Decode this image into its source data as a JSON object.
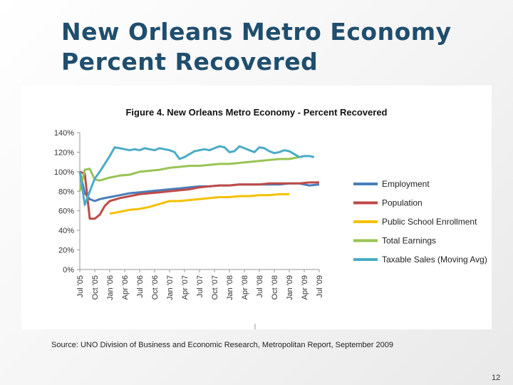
{
  "slide": {
    "title_line1": "New Orleans Metro Economy",
    "title_line2": "Percent Recovered",
    "source": "Source: UNO Division of Business and Economic Research, Metropolitan Report, September 2009",
    "page_number": "12"
  },
  "chart_data": {
    "type": "line",
    "title": "Figure 4. New Orleans Metro Economy - Percent Recovered",
    "xlabel": "",
    "ylabel": "",
    "ylim": [
      0,
      140
    ],
    "y_ticks": [
      "0%",
      "20%",
      "40%",
      "60%",
      "80%",
      "100%",
      "120%",
      "140%"
    ],
    "x_ticks": [
      "Jul '05",
      "Oct '05",
      "Jan '06",
      "Apr '06",
      "Jul '06",
      "Oct '06",
      "Jan '07",
      "Apr '07",
      "Jul '07",
      "Oct '07",
      "Jan '08",
      "Apr '08",
      "Jul '08",
      "Oct '08",
      "Jan '09",
      "Apr '09",
      "Jul '09"
    ],
    "legend_position": "right",
    "grid": false,
    "series": [
      {
        "name": "Employment",
        "color": "#4a7ebb",
        "x": [
          0,
          1,
          2,
          3,
          4,
          5,
          6,
          8,
          10,
          12,
          14,
          16,
          18,
          20,
          22,
          24,
          26,
          28,
          30,
          32,
          34,
          36,
          38,
          40,
          42,
          44,
          46,
          48
        ],
        "values": [
          100,
          78,
          72,
          70,
          72,
          73,
          74,
          76,
          78,
          79,
          80,
          81,
          82,
          83,
          84,
          85,
          85,
          86,
          86,
          87,
          87,
          87,
          87,
          87,
          88,
          88,
          86,
          87
        ]
      },
      {
        "name": "Population",
        "color": "#be4b48",
        "x": [
          0,
          1,
          2,
          3,
          4,
          5,
          6,
          8,
          10,
          12,
          14,
          16,
          18,
          20,
          22,
          24,
          26,
          28,
          30,
          32,
          34,
          36,
          38,
          40,
          42,
          44,
          46,
          48
        ],
        "values": [
          100,
          98,
          52,
          52,
          56,
          65,
          70,
          73,
          75,
          77,
          78,
          79,
          80,
          81,
          82,
          84,
          85,
          86,
          86,
          87,
          87,
          87,
          88,
          88,
          88,
          88,
          89,
          89
        ]
      },
      {
        "name": "Public School Enrollment",
        "color": "#f5c000",
        "x": [
          6,
          8,
          10,
          12,
          14,
          16,
          18,
          20,
          22,
          24,
          26,
          28,
          30,
          32,
          34,
          36,
          38,
          40,
          42
        ],
        "values": [
          57,
          59,
          61,
          62,
          64,
          67,
          70,
          70,
          71,
          72,
          73,
          74,
          74,
          75,
          75,
          76,
          76,
          77,
          77
        ]
      },
      {
        "name": "Total Earnings",
        "color": "#98c454",
        "x": [
          0,
          1,
          2,
          3,
          4,
          6,
          8,
          10,
          12,
          14,
          16,
          18,
          20,
          22,
          24,
          26,
          28,
          30,
          32,
          34,
          36,
          38,
          40,
          42,
          44
        ],
        "values": [
          80,
          102,
          103,
          92,
          91,
          94,
          96,
          97,
          100,
          101,
          102,
          104,
          105,
          106,
          106,
          107,
          108,
          108,
          109,
          110,
          111,
          112,
          113,
          113,
          115
        ]
      },
      {
        "name": "Taxable Sales (Moving Avg)",
        "color": "#4bacc6",
        "x": [
          0,
          1,
          2,
          3,
          4,
          5,
          6,
          7,
          8,
          9,
          10,
          11,
          12,
          13,
          14,
          15,
          16,
          17,
          18,
          19,
          20,
          21,
          22,
          23,
          24,
          25,
          26,
          27,
          28,
          29,
          30,
          31,
          32,
          33,
          34,
          35,
          36,
          37,
          38,
          39,
          40,
          41,
          42,
          43,
          44,
          45,
          46,
          47
        ],
        "values": [
          100,
          66,
          80,
          93,
          100,
          108,
          116,
          125,
          124,
          123,
          122,
          123,
          122,
          124,
          123,
          122,
          124,
          123,
          122,
          120,
          113,
          115,
          118,
          121,
          122,
          123,
          122,
          124,
          126,
          125,
          120,
          121,
          126,
          124,
          122,
          120,
          125,
          124,
          121,
          119,
          120,
          122,
          121,
          118,
          115,
          116,
          116,
          115
        ]
      }
    ]
  }
}
